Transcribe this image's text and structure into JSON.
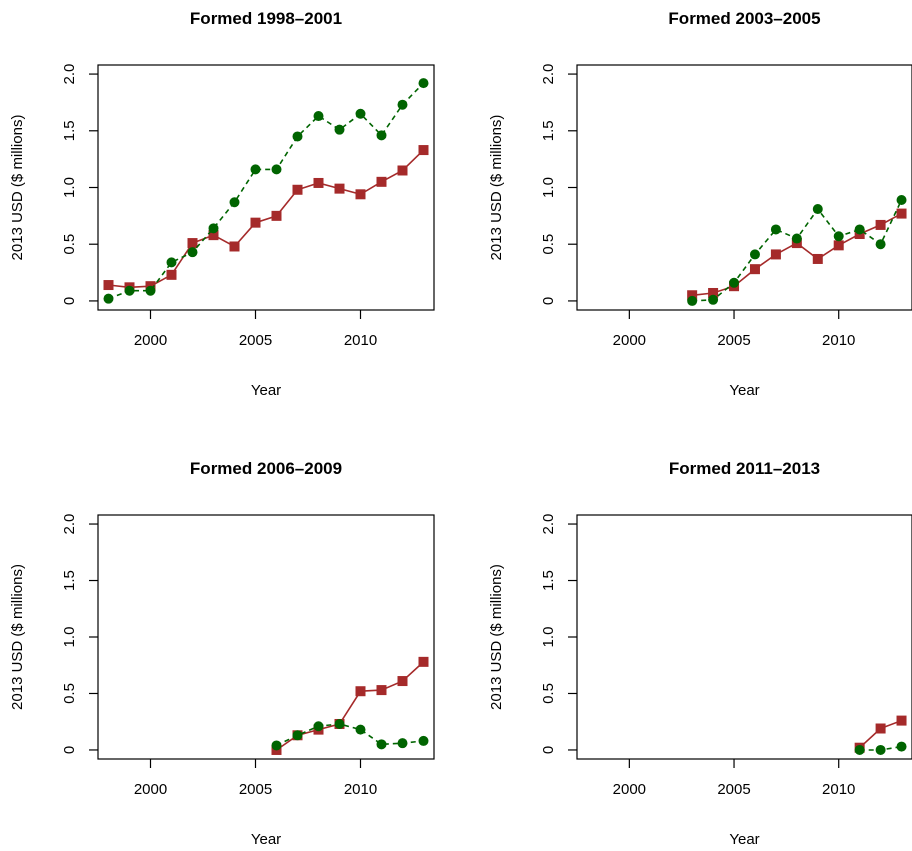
{
  "colors": {
    "series_a": "#A52A2A",
    "series_b": "#006400",
    "axis": "#000000"
  },
  "chart_data": [
    {
      "type": "line",
      "title": "Formed 1998–2001",
      "xlabel": "Year",
      "ylabel": "2013 USD ($ millions)",
      "xlim": [
        1997.5,
        2013.5
      ],
      "ylim": [
        -0.08,
        2.08
      ],
      "xticks": [
        2000,
        2005,
        2010
      ],
      "yticks": [
        0,
        0.5,
        1.0,
        1.5,
        2.0
      ],
      "ytick_labels": [
        "0",
        "0.5",
        "1.0",
        "1.5",
        "2.0"
      ],
      "grid": false,
      "series": [
        {
          "marker": "square",
          "line": "solid",
          "color": "#A52A2A",
          "x": [
            1998,
            1999,
            2000,
            2001,
            2002,
            2003,
            2004,
            2005,
            2006,
            2007,
            2008,
            2009,
            2010,
            2011,
            2012,
            2013
          ],
          "y": [
            0.14,
            0.12,
            0.13,
            0.23,
            0.51,
            0.58,
            0.48,
            0.69,
            0.75,
            0.98,
            1.04,
            0.99,
            0.94,
            1.05,
            1.15,
            1.33
          ]
        },
        {
          "marker": "circle",
          "line": "dashed",
          "color": "#006400",
          "x": [
            1998,
            1999,
            2000,
            2001,
            2002,
            2003,
            2004,
            2005,
            2006,
            2007,
            2008,
            2009,
            2010,
            2011,
            2012,
            2013
          ],
          "y": [
            0.02,
            0.09,
            0.09,
            0.34,
            0.43,
            0.64,
            0.87,
            1.16,
            1.16,
            1.45,
            1.63,
            1.51,
            1.65,
            1.46,
            1.73,
            1.92
          ]
        }
      ]
    },
    {
      "type": "line",
      "title": "Formed 2003–2005",
      "xlabel": "Year",
      "ylabel": "2013 USD ($ millions)",
      "xlim": [
        1997.5,
        2013.5
      ],
      "ylim": [
        -0.08,
        2.08
      ],
      "xticks": [
        2000,
        2005,
        2010
      ],
      "yticks": [
        0,
        0.5,
        1.0,
        1.5,
        2.0
      ],
      "ytick_labels": [
        "0",
        "0.5",
        "1.0",
        "1.5",
        "2.0"
      ],
      "grid": false,
      "series": [
        {
          "marker": "square",
          "line": "solid",
          "color": "#A52A2A",
          "x": [
            2003,
            2004,
            2005,
            2006,
            2007,
            2008,
            2009,
            2010,
            2011,
            2012,
            2013
          ],
          "y": [
            0.05,
            0.07,
            0.13,
            0.28,
            0.41,
            0.51,
            0.37,
            0.49,
            0.59,
            0.67,
            0.77
          ]
        },
        {
          "marker": "circle",
          "line": "dashed",
          "color": "#006400",
          "x": [
            2003,
            2004,
            2005,
            2006,
            2007,
            2008,
            2009,
            2010,
            2011,
            2012,
            2013
          ],
          "y": [
            0.0,
            0.01,
            0.16,
            0.41,
            0.63,
            0.55,
            0.81,
            0.57,
            0.63,
            0.5,
            0.89
          ]
        }
      ]
    },
    {
      "type": "line",
      "title": "Formed 2006–2009",
      "xlabel": "Year",
      "ylabel": "2013 USD ($ millions)",
      "xlim": [
        1997.5,
        2013.5
      ],
      "ylim": [
        -0.08,
        2.08
      ],
      "xticks": [
        2000,
        2005,
        2010
      ],
      "yticks": [
        0,
        0.5,
        1.0,
        1.5,
        2.0
      ],
      "ytick_labels": [
        "0",
        "0.5",
        "1.0",
        "1.5",
        "2.0"
      ],
      "grid": false,
      "series": [
        {
          "marker": "square",
          "line": "solid",
          "color": "#A52A2A",
          "x": [
            2006,
            2007,
            2008,
            2009,
            2010,
            2011,
            2012,
            2013
          ],
          "y": [
            0.0,
            0.13,
            0.18,
            0.23,
            0.52,
            0.53,
            0.61,
            0.78
          ]
        },
        {
          "marker": "circle",
          "line": "dashed",
          "color": "#006400",
          "x": [
            2006,
            2007,
            2008,
            2009,
            2010,
            2011,
            2012,
            2013
          ],
          "y": [
            0.04,
            0.13,
            0.21,
            0.23,
            0.18,
            0.05,
            0.06,
            0.08
          ]
        }
      ]
    },
    {
      "type": "line",
      "title": "Formed 2011–2013",
      "xlabel": "Year",
      "ylabel": "2013 USD ($ millions)",
      "xlim": [
        1997.5,
        2013.5
      ],
      "ylim": [
        -0.08,
        2.08
      ],
      "xticks": [
        2000,
        2005,
        2010
      ],
      "yticks": [
        0,
        0.5,
        1.0,
        1.5,
        2.0
      ],
      "ytick_labels": [
        "0",
        "0.5",
        "1.0",
        "1.5",
        "2.0"
      ],
      "grid": false,
      "series": [
        {
          "marker": "square",
          "line": "solid",
          "color": "#A52A2A",
          "x": [
            2011,
            2012,
            2013
          ],
          "y": [
            0.02,
            0.19,
            0.26
          ]
        },
        {
          "marker": "circle",
          "line": "dashed",
          "color": "#006400",
          "x": [
            2011,
            2012,
            2013
          ],
          "y": [
            0.0,
            0.0,
            0.03
          ]
        }
      ]
    }
  ]
}
